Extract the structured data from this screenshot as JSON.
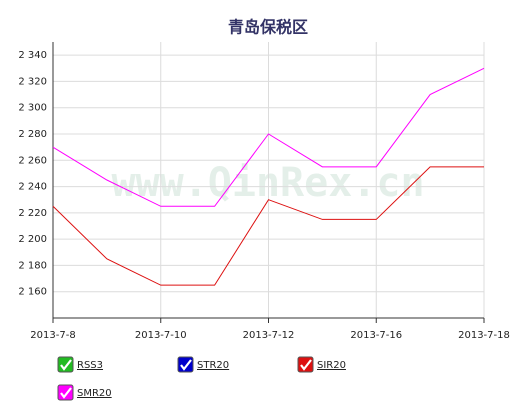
{
  "chart_data": {
    "type": "line",
    "title": "青岛保税区",
    "watermark": "www.QinRex.cn",
    "categories": [
      "2013-7-8",
      null,
      "2013-7-10",
      null,
      "2013-7-12",
      null,
      "2013-7-16",
      null,
      "2013-7-18"
    ],
    "series": [
      {
        "name": "RSS3",
        "color": "#22bb22",
        "values": [
          null,
          null,
          null,
          null,
          null,
          null,
          null,
          null,
          null
        ]
      },
      {
        "name": "STR20",
        "color": "#0000cc",
        "values": [
          null,
          null,
          null,
          null,
          null,
          null,
          null,
          null,
          null
        ]
      },
      {
        "name": "SIR20",
        "color": "#dd1111",
        "values": [
          2225,
          2185,
          2165,
          2165,
          2230,
          2215,
          2215,
          2255,
          2255
        ]
      },
      {
        "name": "SMR20",
        "color": "#ff00ff",
        "values": [
          2270,
          2245,
          2225,
          2225,
          2280,
          2255,
          2255,
          2310,
          2330
        ]
      }
    ],
    "ylim": [
      2140,
      2350
    ],
    "yticks": [
      {
        "value": 2160,
        "label": "2 160"
      },
      {
        "value": 2180,
        "label": "2 180"
      },
      {
        "value": 2200,
        "label": "2 200"
      },
      {
        "value": 2220,
        "label": "2 220"
      },
      {
        "value": 2240,
        "label": "2 240"
      },
      {
        "value": 2260,
        "label": "2 260"
      },
      {
        "value": 2280,
        "label": "2 280"
      },
      {
        "value": 2300,
        "label": "2 300"
      },
      {
        "value": 2320,
        "label": "2 320"
      },
      {
        "value": 2340,
        "label": "2 340"
      }
    ],
    "grid": true
  }
}
